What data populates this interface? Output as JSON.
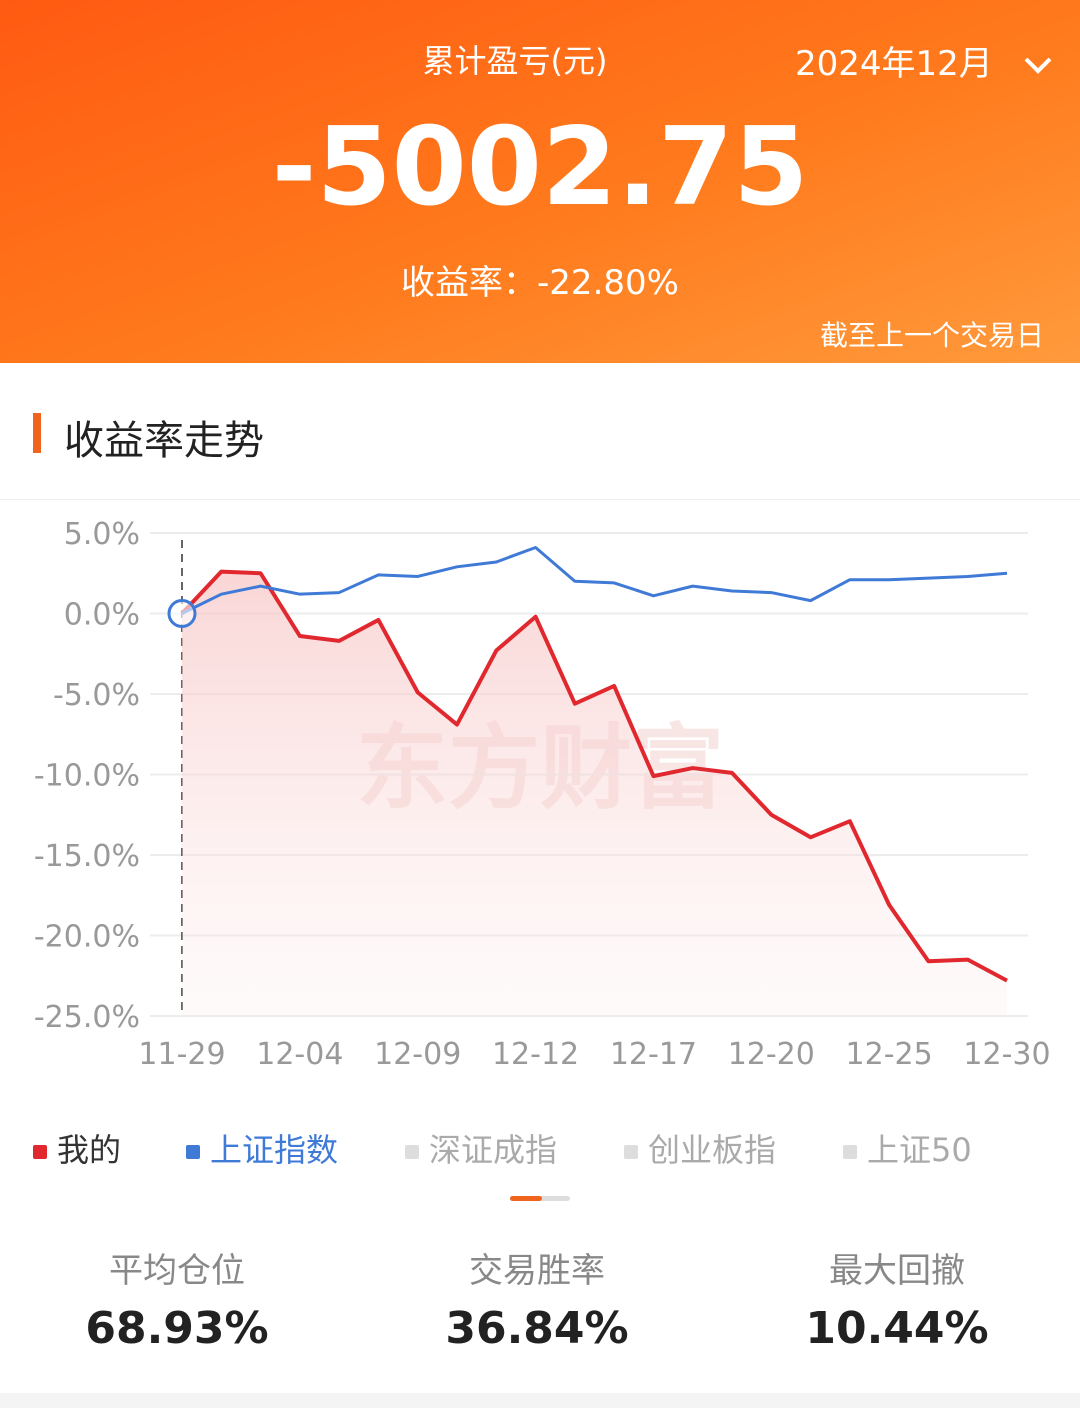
{
  "header": {
    "title": "累计盈亏(元)",
    "month": "2024年12月",
    "amount": "-5002.75",
    "rate": "收益率：-22.80%",
    "note": "截至上一个交易日"
  },
  "section_title": "收益率走势",
  "chart_data": {
    "type": "line",
    "watermark": "东方财富",
    "categories": [
      "11-29",
      null,
      null,
      "12-04",
      null,
      null,
      "12-09",
      null,
      null,
      "12-12",
      null,
      null,
      "12-17",
      null,
      null,
      "12-20",
      null,
      null,
      "12-25",
      null,
      null,
      "12-30"
    ],
    "series": [
      {
        "name": "我的",
        "color": "#e0282e",
        "values": [
          0.0,
          2.6,
          2.5,
          -1.4,
          -1.7,
          -0.4,
          -4.9,
          -6.9,
          -2.3,
          -0.2,
          -5.6,
          -4.5,
          -10.1,
          -9.6,
          -9.9,
          -12.5,
          -13.9,
          -12.9,
          -18.1,
          -21.6,
          -21.5,
          -22.8
        ]
      },
      {
        "name": "上证指数",
        "color": "#3f7ad6",
        "values": [
          0.0,
          1.2,
          1.7,
          1.2,
          1.3,
          2.4,
          2.3,
          2.9,
          3.2,
          4.1,
          2.0,
          1.9,
          1.1,
          1.7,
          1.4,
          1.3,
          0.8,
          2.1,
          2.1,
          2.2,
          2.3,
          2.5
        ]
      }
    ],
    "inactive_legend": [
      "深证成指",
      "创业板指",
      "上证50"
    ],
    "ylim": [
      -25,
      5
    ],
    "yticks": [
      {
        "value": 5,
        "label": "5.0%"
      },
      {
        "value": 0,
        "label": "0.0%"
      },
      {
        "value": -5,
        "label": "-5.0%"
      },
      {
        "value": -10,
        "label": "-10.0%"
      },
      {
        "value": -15,
        "label": "-15.0%"
      },
      {
        "value": -20,
        "label": "-20.0%"
      },
      {
        "value": -25,
        "label": "-25.0%"
      }
    ],
    "grid": true
  },
  "stats": [
    {
      "label": "平均仓位",
      "value": "68.93%"
    },
    {
      "label": "交易胜率",
      "value": "36.84%"
    },
    {
      "label": "最大回撤",
      "value": "10.44%"
    }
  ]
}
